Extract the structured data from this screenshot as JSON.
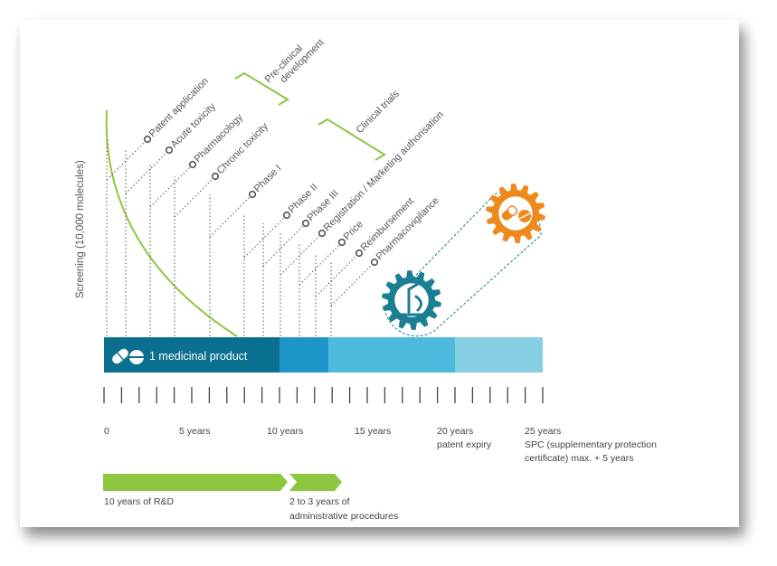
{
  "ylabel": "Screening (10,000 molecules)",
  "brackets": {
    "preclinical": [
      "Pre-clinical",
      "development"
    ],
    "clinical": "Clinical trials"
  },
  "milestones": [
    {
      "label": "Patent application"
    },
    {
      "label": "Acute toxicity"
    },
    {
      "label": "Pharmacology"
    },
    {
      "label": "Chronic toxicity"
    },
    {
      "label": "Phase I"
    },
    {
      "label": "Phase II"
    },
    {
      "label": "Phase III"
    },
    {
      "label": "Registration / Marketing authorisation"
    },
    {
      "label": "Price"
    },
    {
      "label": "Reimbursement"
    },
    {
      "label": "Pharmacovigilance"
    }
  ],
  "bar": {
    "label": "1 medicinal product",
    "segments": [
      {
        "from": 0,
        "to": 10,
        "color": "#0b6f8f"
      },
      {
        "from": 10,
        "to": 12.8,
        "color": "#1e95c9"
      },
      {
        "from": 12.8,
        "to": 20,
        "color": "#4bbadc"
      },
      {
        "from": 20,
        "to": 25,
        "color": "#87cfe2"
      }
    ]
  },
  "axis": {
    "tick_count": 26,
    "labels": [
      {
        "value": 0,
        "lines": [
          "0"
        ]
      },
      {
        "value": 5,
        "lines": [
          "5 years"
        ]
      },
      {
        "value": 10,
        "lines": [
          "10 years"
        ]
      },
      {
        "value": 15,
        "lines": [
          "15 years"
        ]
      },
      {
        "value": 20,
        "lines": [
          "20 years",
          "patent expiry"
        ]
      },
      {
        "value": 25,
        "lines": [
          "25 years",
          "SPC (supplementary protection",
          "certificate) max. + 5 years"
        ]
      }
    ]
  },
  "phases": [
    {
      "lines": [
        "10 years of R&D"
      ]
    },
    {
      "lines": [
        "2 to 3 years of",
        "administrative procedures"
      ]
    }
  ],
  "colors": {
    "green": "#8dc63f",
    "teal": "#1a7f92",
    "orange": "#ee8a1d",
    "dotted": "#555555"
  },
  "icons": [
    "pill-capsule-icon",
    "pill-tablet-icon",
    "gear-microscope-icon",
    "gear-pills-icon"
  ]
}
